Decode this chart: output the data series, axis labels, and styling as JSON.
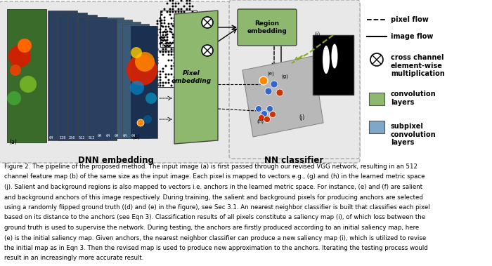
{
  "bg_color": "#ffffff",
  "diagram_bg": "#e8e8e8",
  "green_color": "#8db86e",
  "blue_color": "#7fa8c8",
  "caption_line1": "Figure 2. The pipeline of the proposed method. The input image (a) is first passed through our revised VGG network, resulting in an 512",
  "caption_line2": "channel feature map (b) of the same size as the input image. Each pixel is mapped to vectors ",
  "caption_line2b": "e.g.,",
  "caption_line2c": " (g) and (h) in the learned metric space",
  "caption_line3": "(j). Salient and background regions is also mapped to vectors ",
  "caption_line3b": "i.e.",
  "caption_line3c": " anchors in the learned metric space. For instance, (e) and (f) are salient",
  "caption_line4": "and background anchors of this image respectively. During training, the salient and background pixels for producing anchors are selected",
  "caption_line5": "using a randomly flipped ground truth ((d) and (e) in the figure), see Sec 3.1. An nearest neighbor classifier is built that classifies each pixel",
  "caption_line6": "based on its distance to the anchors (see Eqn 3). Classification results of all pixels constitute a saliency map (i), of which loss between the",
  "caption_line7": "ground truth is used to supervise the network. During testing, the anchors are firstly produced according to an initial saliency map, here",
  "caption_line8": "(e) is the initial saliency map. Given anchors, the nearest neighbor classifier can produce a new saliency map (i), which is utilized to revise",
  "caption_line9": "the initial map as in Eqn 3. Then the revised map is used to produce new approximation to the anchors. Iterating the testing process would",
  "caption_line10": "result in an increasingly more accurate result.",
  "label_dnn": "DNN embedding",
  "label_nn": "NN classifier"
}
